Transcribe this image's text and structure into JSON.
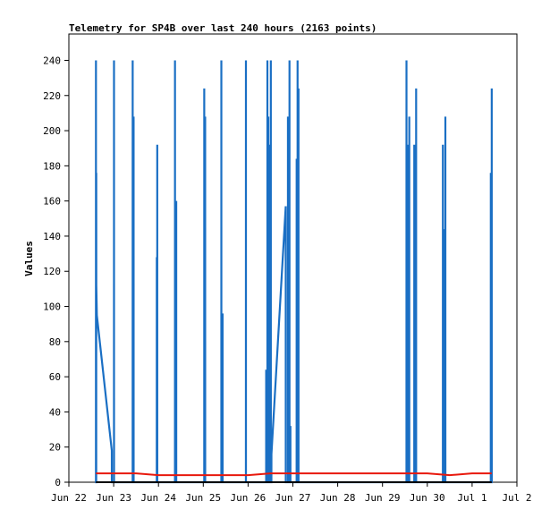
{
  "chart_data": {
    "type": "line",
    "title": "Telemetry for SP4B over last 240 hours (2163 points)",
    "xlabel": "",
    "ylabel": "Values",
    "xlim": [
      "2022-06-22 00:00",
      "2022-07-02 00:00"
    ],
    "ylim": [
      0,
      255
    ],
    "x_ticks": [
      "Jun 22",
      "Jun 23",
      "Jun 24",
      "Jun 25",
      "Jun 26",
      "Jun 27",
      "Jun 28",
      "Jun 29",
      "Jun 30",
      "Jul 1",
      "Jul 2"
    ],
    "y_ticks": [
      0,
      20,
      40,
      60,
      80,
      100,
      120,
      140,
      160,
      180,
      200,
      220,
      240
    ],
    "grid": false,
    "legend": "none",
    "series": [
      {
        "color": "#1a6fc4",
        "points": [
          [
            "2022-06-22 14:30",
            0
          ],
          [
            "2022-06-22 14:31",
            240
          ],
          [
            "2022-06-22 14:32",
            0
          ],
          [
            "2022-06-22 14:40",
            0
          ],
          [
            "2022-06-22 14:41",
            176
          ],
          [
            "2022-06-22 14:42",
            112
          ],
          [
            "2022-06-22 15:00",
            95
          ],
          [
            "2022-06-22 23:00",
            18
          ],
          [
            "2022-06-22 23:01",
            0
          ],
          [
            "2022-06-23 00:10",
            0
          ],
          [
            "2022-06-23 00:11",
            240
          ],
          [
            "2022-06-23 00:12",
            0
          ],
          [
            "2022-06-23 10:10",
            0
          ],
          [
            "2022-06-23 10:11",
            240
          ],
          [
            "2022-06-23 10:12",
            0
          ],
          [
            "2022-06-23 10:40",
            0
          ],
          [
            "2022-06-23 10:41",
            208
          ],
          [
            "2022-06-23 10:42",
            0
          ],
          [
            "2022-06-23 23:05",
            0
          ],
          [
            "2022-06-23 23:06",
            128
          ],
          [
            "2022-06-23 23:07",
            0
          ],
          [
            "2022-06-23 23:20",
            0
          ],
          [
            "2022-06-23 23:21",
            192
          ],
          [
            "2022-06-23 23:22",
            0
          ],
          [
            "2022-06-24 08:50",
            0
          ],
          [
            "2022-06-24 08:51",
            240
          ],
          [
            "2022-06-24 08:52",
            0
          ],
          [
            "2022-06-24 09:30",
            0
          ],
          [
            "2022-06-24 09:31",
            160
          ],
          [
            "2022-06-24 09:32",
            0
          ],
          [
            "2022-06-25 00:30",
            0
          ],
          [
            "2022-06-25 00:31",
            224
          ],
          [
            "2022-06-25 00:32",
            0
          ],
          [
            "2022-06-25 01:00",
            0
          ],
          [
            "2022-06-25 01:01",
            208
          ],
          [
            "2022-06-25 01:02",
            0
          ],
          [
            "2022-06-25 09:40",
            0
          ],
          [
            "2022-06-25 09:41",
            240
          ],
          [
            "2022-06-25 09:42",
            0
          ],
          [
            "2022-06-25 10:20",
            0
          ],
          [
            "2022-06-25 10:21",
            96
          ],
          [
            "2022-06-25 10:22",
            0
          ],
          [
            "2022-06-25 22:50",
            0
          ],
          [
            "2022-06-25 22:51",
            240
          ],
          [
            "2022-06-25 22:52",
            0
          ],
          [
            "2022-06-26 09:40",
            0
          ],
          [
            "2022-06-26 09:41",
            64
          ],
          [
            "2022-06-26 09:42",
            0
          ],
          [
            "2022-06-26 10:20",
            0
          ],
          [
            "2022-06-26 10:21",
            240
          ],
          [
            "2022-06-26 10:22",
            0
          ],
          [
            "2022-06-26 10:50",
            0
          ],
          [
            "2022-06-26 10:51",
            208
          ],
          [
            "2022-06-26 10:52",
            0
          ],
          [
            "2022-06-26 11:20",
            0
          ],
          [
            "2022-06-26 11:21",
            192
          ],
          [
            "2022-06-26 11:22",
            0
          ],
          [
            "2022-06-26 12:10",
            0
          ],
          [
            "2022-06-26 12:11",
            240
          ],
          [
            "2022-06-26 12:12",
            0
          ],
          [
            "2022-06-26 12:30",
            0
          ],
          [
            "2022-06-26 12:31",
            16
          ],
          [
            "2022-06-26 20:10",
            157
          ],
          [
            "2022-06-26 20:11",
            0
          ],
          [
            "2022-06-26 21:20",
            0
          ],
          [
            "2022-06-26 21:21",
            208
          ],
          [
            "2022-06-26 21:22",
            0
          ],
          [
            "2022-06-26 21:40",
            0
          ],
          [
            "2022-06-26 21:41",
            64
          ],
          [
            "2022-06-26 21:42",
            0
          ],
          [
            "2022-06-26 22:10",
            0
          ],
          [
            "2022-06-26 22:11",
            240
          ],
          [
            "2022-06-26 22:12",
            0
          ],
          [
            "2022-06-26 22:40",
            0
          ],
          [
            "2022-06-26 22:41",
            32
          ],
          [
            "2022-06-26 22:42",
            0
          ],
          [
            "2022-06-27 02:00",
            0
          ],
          [
            "2022-06-27 02:01",
            184
          ],
          [
            "2022-06-27 02:02",
            0
          ],
          [
            "2022-06-27 02:30",
            0
          ],
          [
            "2022-06-27 02:31",
            240
          ],
          [
            "2022-06-27 02:32",
            0
          ],
          [
            "2022-06-27 03:00",
            0
          ],
          [
            "2022-06-27 03:01",
            224
          ],
          [
            "2022-06-27 03:02",
            0
          ],
          [
            "2022-06-29 12:50",
            0
          ],
          [
            "2022-06-29 12:51",
            240
          ],
          [
            "2022-06-29 12:52",
            0
          ],
          [
            "2022-06-29 13:40",
            0
          ],
          [
            "2022-06-29 13:41",
            192
          ],
          [
            "2022-06-29 13:42",
            0
          ],
          [
            "2022-06-29 14:20",
            0
          ],
          [
            "2022-06-29 14:21",
            208
          ],
          [
            "2022-06-29 14:22",
            0
          ],
          [
            "2022-06-29 17:00",
            0
          ],
          [
            "2022-06-29 17:01",
            192
          ],
          [
            "2022-06-29 17:02",
            0
          ],
          [
            "2022-06-29 18:00",
            0
          ],
          [
            "2022-06-29 18:01",
            224
          ],
          [
            "2022-06-29 18:02",
            0
          ],
          [
            "2022-06-30 08:20",
            0
          ],
          [
            "2022-06-30 08:21",
            192
          ],
          [
            "2022-06-30 08:22",
            0
          ],
          [
            "2022-06-30 09:10",
            0
          ],
          [
            "2022-06-30 09:11",
            144
          ],
          [
            "2022-06-30 09:12",
            0
          ],
          [
            "2022-06-30 09:40",
            0
          ],
          [
            "2022-06-30 09:41",
            208
          ],
          [
            "2022-06-30 09:42",
            0
          ],
          [
            "2022-07-01 10:00",
            0
          ],
          [
            "2022-07-01 10:01",
            176
          ],
          [
            "2022-07-01 10:02",
            0
          ],
          [
            "2022-07-01 10:30",
            0
          ],
          [
            "2022-07-01 10:31",
            224
          ],
          [
            "2022-07-01 10:32",
            0
          ]
        ]
      },
      {
        "color": "#e8180c",
        "points": [
          [
            "2022-06-22 14:30",
            5
          ],
          [
            "2022-06-23 12:00",
            5
          ],
          [
            "2022-06-24 00:00",
            4
          ],
          [
            "2022-06-24 12:00",
            4
          ],
          [
            "2022-06-25 12:00",
            4
          ],
          [
            "2022-06-26 00:00",
            4
          ],
          [
            "2022-06-26 12:00",
            5
          ],
          [
            "2022-06-27 12:00",
            5
          ],
          [
            "2022-06-28 12:00",
            5
          ],
          [
            "2022-06-29 12:00",
            5
          ],
          [
            "2022-06-30 00:00",
            5
          ],
          [
            "2022-06-30 12:00",
            4
          ],
          [
            "2022-07-01 00:00",
            5
          ],
          [
            "2022-07-01 10:30",
            5
          ]
        ]
      },
      {
        "color": "#000000",
        "points": [
          [
            "2022-06-22 14:30",
            0
          ],
          [
            "2022-07-01 10:30",
            0
          ]
        ]
      }
    ]
  }
}
